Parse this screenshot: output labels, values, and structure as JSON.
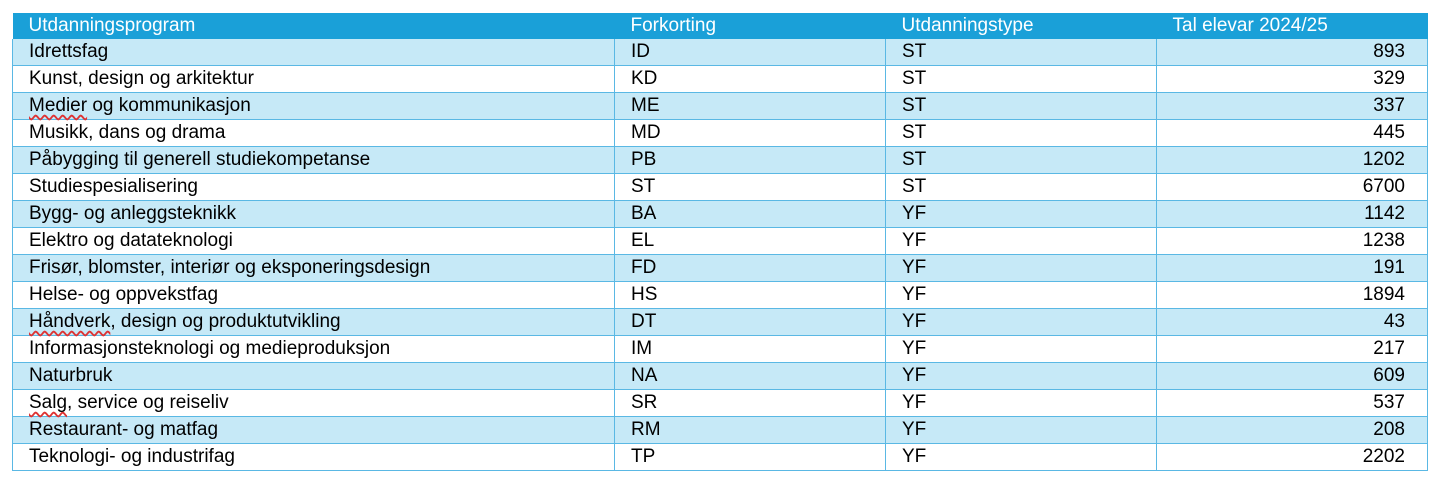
{
  "table": {
    "headers": [
      "Utdanningsprogram",
      "Forkorting",
      "Utdanningstype",
      "Tal elevar 2024/25"
    ],
    "rows": [
      [
        "Idrettsfag",
        "ID",
        "ST",
        "893"
      ],
      [
        "Kunst, design og arkitektur",
        "KD",
        "ST",
        "329"
      ],
      [
        "Medier og kommunikasjon",
        "ME",
        "ST",
        "337"
      ],
      [
        "Musikk, dans og drama",
        "MD",
        "ST",
        "445"
      ],
      [
        "Påbygging til generell studiekompetanse",
        "PB",
        "ST",
        "1202"
      ],
      [
        "Studiespesialisering",
        "ST",
        "ST",
        "6700"
      ],
      [
        "Bygg- og anleggsteknikk",
        "BA",
        "YF",
        "1142"
      ],
      [
        "Elektro og datateknologi",
        "EL",
        "YF",
        "1238"
      ],
      [
        "Frisør, blomster, interiør og eksponeringsdesign",
        "FD",
        "YF",
        "191"
      ],
      [
        "Helse- og oppvekstfag",
        "HS",
        "YF",
        "1894"
      ],
      [
        "Håndverk, design og produktutvikling",
        "DT",
        "YF",
        "43"
      ],
      [
        "Informasjonsteknologi og medieproduksjon",
        "IM",
        "YF",
        "217"
      ],
      [
        "Naturbruk",
        "NA",
        "YF",
        "609"
      ],
      [
        "Salg, service og reiseliv",
        "SR",
        "YF",
        "537"
      ],
      [
        "Restaurant- og matfag",
        "RM",
        "YF",
        "208"
      ],
      [
        "Teknologi- og industrifag",
        "TP",
        "YF",
        "2202"
      ]
    ]
  },
  "colors": {
    "header_bg": "#1aa0d8",
    "band_bg": "#c6e9f7",
    "border": "#5ab8e4"
  }
}
